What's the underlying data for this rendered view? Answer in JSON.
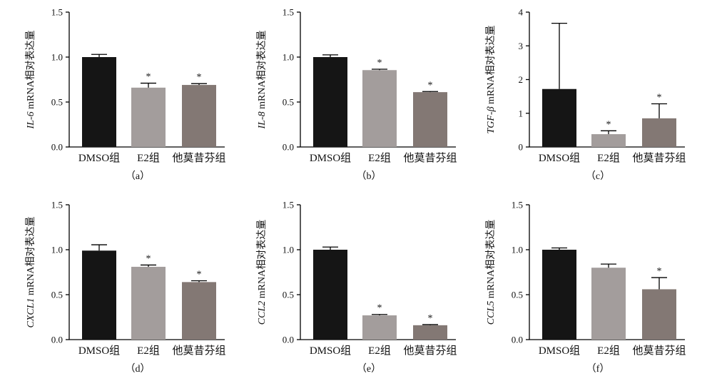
{
  "chart_data": [
    {
      "panel": "（a）",
      "type": "bar",
      "ylabel_gene": "IL-6",
      "ylabel_rest": " mRNA相对表达量",
      "ylim": [
        0,
        1.5
      ],
      "yticks": [
        "0.0",
        "0.5",
        "1.0",
        "1.5"
      ],
      "categories": [
        "DMSO组",
        "E2组",
        "他莫昔芬组"
      ],
      "values": [
        1.0,
        0.66,
        0.69
      ],
      "errors": [
        0.03,
        0.05,
        0.015
      ],
      "significant": [
        false,
        true,
        true
      ],
      "significance_mark": "*"
    },
    {
      "panel": "（b）",
      "type": "bar",
      "ylabel_gene": "IL-8",
      "ylabel_rest": " mRNA相对表达量",
      "ylim": [
        0,
        1.5
      ],
      "yticks": [
        "0.0",
        "0.5",
        "1.0",
        "1.5"
      ],
      "categories": [
        "DMSO组",
        "E2组",
        "他莫昔芬组"
      ],
      "values": [
        1.0,
        0.855,
        0.61
      ],
      "errors": [
        0.025,
        0.01,
        0.007
      ],
      "significant": [
        false,
        true,
        true
      ],
      "significance_mark": "*"
    },
    {
      "panel": "（c）",
      "type": "bar",
      "ylabel_gene": "TGF-β",
      "ylabel_rest": " mRNA相对表达量",
      "ylim": [
        0,
        4
      ],
      "yticks": [
        "0",
        "1",
        "2",
        "3",
        "4"
      ],
      "categories": [
        "DMSO组",
        "E2组",
        "他莫昔芬组"
      ],
      "values": [
        1.72,
        0.38,
        0.85
      ],
      "errors": [
        1.95,
        0.1,
        0.43
      ],
      "significant": [
        false,
        true,
        true
      ],
      "significance_mark": "*"
    },
    {
      "panel": "（d）",
      "type": "bar",
      "ylabel_gene": "CXCL1",
      "ylabel_rest": " mRNA相对表达量",
      "ylim": [
        0,
        1.5
      ],
      "yticks": [
        "0.0",
        "0.5",
        "1.0",
        "1.5"
      ],
      "categories": [
        "DMSO组",
        "E2组",
        "他莫昔芬组"
      ],
      "values": [
        0.99,
        0.81,
        0.64
      ],
      "errors": [
        0.065,
        0.02,
        0.015
      ],
      "significant": [
        false,
        true,
        true
      ],
      "significance_mark": "*"
    },
    {
      "panel": "（e）",
      "type": "bar",
      "ylabel_gene": "CCL2",
      "ylabel_rest": " mRNA相对表达量",
      "ylim": [
        0,
        1.5
      ],
      "yticks": [
        "0.0",
        "0.5",
        "1.0",
        "1.5"
      ],
      "categories": [
        "DMSO组",
        "E2组",
        "他莫昔芬组"
      ],
      "values": [
        1.0,
        0.27,
        0.16
      ],
      "errors": [
        0.03,
        0.01,
        0.007
      ],
      "significant": [
        false,
        true,
        true
      ],
      "significance_mark": "*"
    },
    {
      "panel": "（f）",
      "type": "bar",
      "ylabel_gene": "CCL5",
      "ylabel_rest": " mRNA相对表达量",
      "ylim": [
        0,
        1.5
      ],
      "yticks": [
        "0.0",
        "0.5",
        "1.0",
        "1.5"
      ],
      "categories": [
        "DMSO组",
        "E2组",
        "他莫昔芬组"
      ],
      "values": [
        1.0,
        0.8,
        0.56
      ],
      "errors": [
        0.02,
        0.04,
        0.13
      ],
      "significant": [
        false,
        false,
        true
      ],
      "significance_mark": "*"
    }
  ],
  "colors": {
    "bars": [
      "#151515",
      "#a39d9c",
      "#837874"
    ],
    "axis": "#000000"
  }
}
